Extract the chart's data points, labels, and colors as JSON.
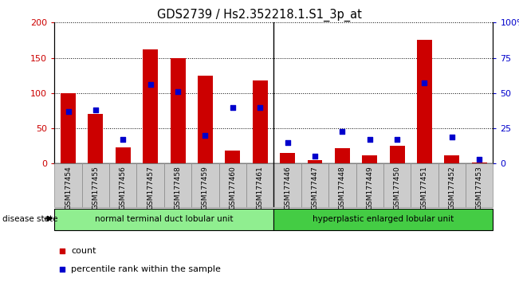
{
  "title": "GDS2739 / Hs2.352218.1.S1_3p_at",
  "samples": [
    "GSM177454",
    "GSM177455",
    "GSM177456",
    "GSM177457",
    "GSM177458",
    "GSM177459",
    "GSM177460",
    "GSM177461",
    "GSM177446",
    "GSM177447",
    "GSM177448",
    "GSM177449",
    "GSM177450",
    "GSM177451",
    "GSM177452",
    "GSM177453"
  ],
  "counts": [
    100,
    70,
    23,
    162,
    150,
    125,
    18,
    118,
    15,
    5,
    22,
    12,
    25,
    175,
    12,
    2
  ],
  "percentiles": [
    37,
    38,
    17,
    56,
    51,
    20,
    40,
    40,
    15,
    5,
    23,
    17,
    17,
    57,
    19,
    3
  ],
  "group1_label": "normal terminal duct lobular unit",
  "group2_label": "hyperplastic enlarged lobular unit",
  "group1_count": 8,
  "group2_count": 8,
  "ylim_left": [
    0,
    200
  ],
  "ylim_right": [
    0,
    100
  ],
  "yticks_left": [
    0,
    50,
    100,
    150,
    200
  ],
  "yticks_right": [
    0,
    25,
    50,
    75,
    100
  ],
  "bar_color": "#cc0000",
  "scatter_color": "#0000cc",
  "group1_bg": "#90ee90",
  "group2_bg": "#44cc44",
  "tick_bg": "#cccccc",
  "ylabel_left_color": "#cc0000",
  "ylabel_right_color": "#0000cc",
  "legend_count_color": "#cc0000",
  "legend_pct_color": "#0000cc"
}
